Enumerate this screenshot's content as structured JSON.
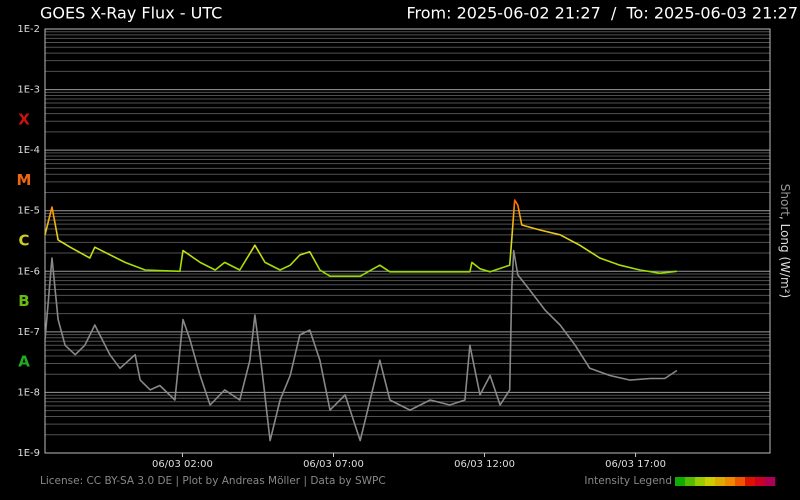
{
  "chart_data": {
    "type": "line",
    "title": "GOES X-Ray Flux - UTC",
    "range_text": "From: 2025-06-02 21:27  /  To: 2025-06-03 21:27",
    "y_label_parts": [
      {
        "text": "Short",
        "color": "#999999"
      },
      {
        "text": ", Long (W/m²)",
        "color": "#dddddd"
      }
    ],
    "footer": "License: CC BY-SA 3.0 DE | Plot by Andreas Möller | Data by SWPC",
    "legend_label": "Intensity Legend",
    "ylog": true,
    "ylim": [
      1e-09,
      0.01
    ],
    "yticks": [
      {
        "value": 1e-09,
        "label": "1E-9"
      },
      {
        "value": 1e-08,
        "label": "1E-8"
      },
      {
        "value": 1e-07,
        "label": "1E-7"
      },
      {
        "value": 1e-06,
        "label": "1E-6"
      },
      {
        "value": 1e-05,
        "label": "1E-5"
      },
      {
        "value": 0.0001,
        "label": "1E-4"
      },
      {
        "value": 0.001,
        "label": "1E-3"
      },
      {
        "value": 0.01,
        "label": "1E-2"
      }
    ],
    "minor_grid": true,
    "classes": [
      {
        "label": "A",
        "value": 3.16e-08,
        "color": "#22aa22"
      },
      {
        "label": "B",
        "value": 3.16e-07,
        "color": "#66bb11"
      },
      {
        "label": "C",
        "value": 3.16e-06,
        "color": "#cccc22"
      },
      {
        "label": "M",
        "value": 3.16e-05,
        "color": "#ee6611"
      },
      {
        "label": "X",
        "value": 0.000316,
        "color": "#cc1111"
      }
    ],
    "xlim": [
      "2025-06-02 21:27",
      "2025-06-03 21:27"
    ],
    "xticks": [
      {
        "value": "2025-06-03 02:00",
        "label": "06/03 02:00"
      },
      {
        "value": "2025-06-03 07:00",
        "label": "06/03 07:00"
      },
      {
        "value": "2025-06-03 12:00",
        "label": "06/03 12:00"
      },
      {
        "value": "2025-06-03 17:00",
        "label": "06/03 17:00"
      }
    ],
    "intensity_colors": [
      {
        "value": 1e-07,
        "color": "#33cc00"
      },
      {
        "value": 1e-06,
        "color": "#99dd00"
      },
      {
        "value": 3e-06,
        "color": "#dddd22"
      },
      {
        "value": 1e-05,
        "color": "#ff9900"
      },
      {
        "value": 2e-05,
        "color": "#ff3300"
      }
    ],
    "intensity_legend_colors": [
      "#11aa00",
      "#55bb00",
      "#99cc00",
      "#cccc00",
      "#ddaa00",
      "#ee8800",
      "#ee5500",
      "#dd1100",
      "#cc0022",
      "#aa0055"
    ],
    "series": [
      {
        "color": "#888888",
        "x": [
          "2025-06-02 21:27",
          "2025-06-02 21:41",
          "2025-06-02 21:53",
          "2025-06-02 22:07",
          "2025-06-02 22:27",
          "2025-06-02 22:46",
          "2025-06-02 23:06",
          "2025-06-02 23:36",
          "2025-06-02 23:56",
          "2025-06-03 00:26",
          "2025-06-03 00:36",
          "2025-06-03 00:56",
          "2025-06-03 01:15",
          "2025-06-03 01:45",
          "2025-06-03 02:01",
          "2025-06-03 02:15",
          "2025-06-03 02:35",
          "2025-06-03 02:55",
          "2025-06-03 03:24",
          "2025-06-03 03:54",
          "2025-06-03 04:14",
          "2025-06-03 04:24",
          "2025-06-03 04:38",
          "2025-06-03 04:54",
          "2025-06-03 05:14",
          "2025-06-03 05:34",
          "2025-06-03 05:53",
          "2025-06-03 06:13",
          "2025-06-03 06:33",
          "2025-06-03 06:53",
          "2025-06-03 07:23",
          "2025-06-03 07:53",
          "2025-06-03 08:32",
          "2025-06-03 08:52",
          "2025-06-03 09:32",
          "2025-06-03 10:12",
          "2025-06-03 10:51",
          "2025-06-03 11:21",
          "2025-06-03 11:31",
          "2025-06-03 11:51",
          "2025-06-03 12:11",
          "2025-06-03 12:31",
          "2025-06-03 12:50",
          "2025-06-03 12:54",
          "2025-06-03 12:58",
          "2025-06-03 13:06",
          "2025-06-03 13:30",
          "2025-06-03 14:00",
          "2025-06-03 14:30",
          "2025-06-03 15:00",
          "2025-06-03 15:29",
          "2025-06-03 16:09",
          "2025-06-03 16:49",
          "2025-06-03 17:29",
          "2025-06-03 17:58",
          "2025-06-03 18:22"
        ],
        "values": [
          7.4e-08,
          1.66e-06,
          1.6e-07,
          6e-08,
          4.2e-08,
          6e-08,
          1.3e-07,
          4.2e-08,
          2.5e-08,
          4.2e-08,
          1.6e-08,
          1.1e-08,
          1.3e-08,
          7.5e-09,
          1.6e-07,
          7.4e-08,
          1.9e-08,
          6.2e-09,
          1.1e-08,
          7.5e-09,
          3.4e-08,
          1.9e-07,
          2.3e-08,
          1.6e-09,
          7.5e-09,
          1.9e-08,
          8.9e-08,
          1.07e-07,
          3.4e-08,
          5.1e-09,
          9.1e-09,
          1.6e-09,
          3.4e-08,
          7.5e-09,
          5.1e-09,
          7.5e-09,
          6.2e-09,
          7.5e-09,
          6e-08,
          9.1e-09,
          1.9e-08,
          6.2e-09,
          1.1e-08,
          4.9e-07,
          2.2e-06,
          8.7e-07,
          4.9e-07,
          2.3e-07,
          1.3e-07,
          6e-08,
          2.5e-08,
          1.9e-08,
          1.6e-08,
          1.7e-08,
          1.7e-08,
          2.3e-08
        ]
      },
      {
        "color": "intensity",
        "x": [
          "2025-06-02 21:27",
          "2025-06-02 21:41",
          "2025-06-02 21:53",
          "2025-06-02 22:17",
          "2025-06-02 22:56",
          "2025-06-02 23:06",
          "2025-06-03 00:06",
          "2025-06-03 00:46",
          "2025-06-03 01:55",
          "2025-06-03 02:01",
          "2025-06-03 02:35",
          "2025-06-03 03:05",
          "2025-06-03 03:24",
          "2025-06-03 03:54",
          "2025-06-03 04:24",
          "2025-06-03 04:44",
          "2025-06-03 05:14",
          "2025-06-03 05:34",
          "2025-06-03 05:53",
          "2025-06-03 06:13",
          "2025-06-03 06:33",
          "2025-06-03 06:53",
          "2025-06-03 07:53",
          "2025-06-03 08:32",
          "2025-06-03 08:52",
          "2025-06-03 09:52",
          "2025-06-03 11:31",
          "2025-06-03 11:35",
          "2025-06-03 11:51",
          "2025-06-03 12:11",
          "2025-06-03 12:50",
          "2025-06-03 12:54",
          "2025-06-03 13:00",
          "2025-06-03 13:06",
          "2025-06-03 13:14",
          "2025-06-03 13:50",
          "2025-06-03 14:30",
          "2025-06-03 15:09",
          "2025-06-03 15:49",
          "2025-06-03 16:29",
          "2025-06-03 17:09",
          "2025-06-03 17:48",
          "2025-06-03 18:22"
        ],
        "values": [
          4e-06,
          1.15e-05,
          3.3e-06,
          2.5e-06,
          1.66e-06,
          2.5e-06,
          1.4e-06,
          1.05e-06,
          1e-06,
          2.2e-06,
          1.4e-06,
          1.05e-06,
          1.4e-06,
          1.05e-06,
          2.7e-06,
          1.4e-06,
          1.05e-06,
          1.26e-06,
          1.86e-06,
          2.1e-06,
          1.05e-06,
          8.3e-07,
          8.3e-07,
          1.26e-06,
          9.8e-07,
          9.8e-07,
          9.8e-07,
          1.4e-06,
          1.1e-06,
          9.8e-07,
          1.26e-06,
          3.3e-06,
          1.5e-05,
          1.24e-05,
          5.8e-06,
          4.8e-06,
          4e-06,
          2.7e-06,
          1.66e-06,
          1.26e-06,
          1.05e-06,
          9.3e-07,
          1e-06
        ]
      }
    ]
  }
}
